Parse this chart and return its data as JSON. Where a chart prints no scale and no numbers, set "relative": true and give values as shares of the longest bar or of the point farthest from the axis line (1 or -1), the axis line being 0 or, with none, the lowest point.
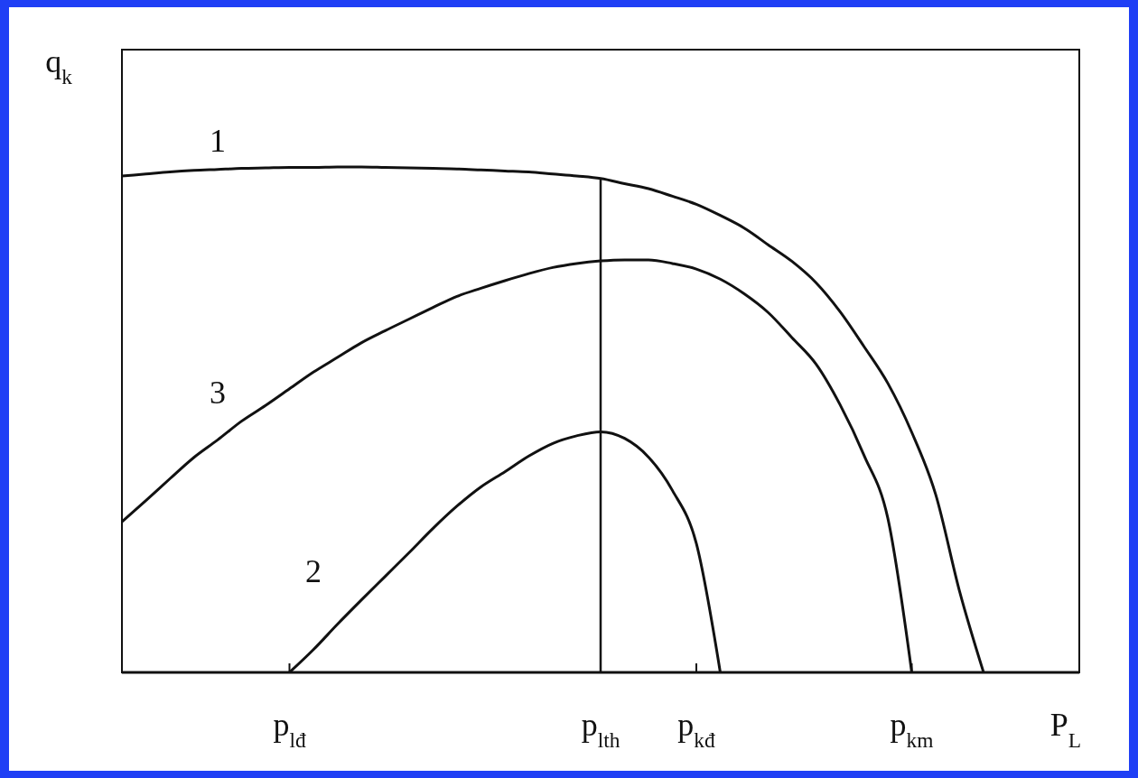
{
  "chart_data": {
    "type": "line",
    "relative": true,
    "xlabel": "P$_{L}$",
    "ylabel": "q$_{k}$",
    "categories": [
      null,
      null,
      null,
      null,
      null,
      null,
      null,
      "p$_{lđ}$",
      null,
      null,
      null,
      null,
      null,
      null,
      null,
      null,
      null,
      null,
      null,
      null,
      "p$_{lth}$",
      null,
      null,
      null,
      "p$_{kđ}$",
      null,
      null,
      null,
      null,
      null,
      null,
      null,
      null,
      "p$_{km}$",
      null,
      null,
      null,
      null,
      null,
      null,
      null
    ],
    "series": [
      {
        "name": "1",
        "color": "#111111",
        "values": [
          0.982,
          0.986,
          0.99,
          0.993,
          0.995,
          0.997,
          0.998,
          0.999,
          0.999,
          1,
          1,
          0.999,
          0.998,
          0.997,
          0.996,
          0.994,
          0.992,
          0.99,
          0.986,
          0.982,
          0.977,
          0.967,
          0.957,
          0.942,
          0.926,
          0.904,
          0.879,
          0.846,
          0.813,
          0.771,
          0.714,
          0.645,
          0.572,
          0.475,
          0.352,
          0.16,
          0,
          null,
          null,
          null,
          null
        ]
      },
      {
        "name": "2",
        "color": "#111111",
        "values": [
          null,
          null,
          null,
          null,
          null,
          null,
          null,
          0,
          0.045,
          0.095,
          0.143,
          0.19,
          0.237,
          0.285,
          0.329,
          0.367,
          0.397,
          0.428,
          0.453,
          0.468,
          0.476,
          0.463,
          0.426,
          0.36,
          0.255,
          0,
          null,
          null,
          null,
          null,
          null,
          null,
          null,
          null,
          null,
          null,
          null,
          null,
          null,
          null,
          null
        ]
      },
      {
        "name": "3",
        "color": "#111111",
        "values": [
          0.298,
          0.34,
          0.383,
          0.425,
          0.46,
          0.497,
          0.528,
          0.561,
          0.594,
          0.623,
          0.652,
          0.676,
          0.699,
          0.722,
          0.744,
          0.76,
          0.775,
          0.789,
          0.801,
          0.809,
          0.814,
          0.816,
          0.816,
          0.809,
          0.798,
          0.778,
          0.749,
          0.712,
          0.662,
          0.61,
          0.53,
          0.43,
          0.305,
          0,
          null,
          null,
          null,
          null,
          null,
          null,
          null
        ]
      }
    ],
    "ref_lines": [
      {
        "axis": "x",
        "value": "p$_{lth}$",
        "color": "#111111"
      }
    ],
    "grid": false,
    "marker": "none",
    "line_style": "solid"
  }
}
